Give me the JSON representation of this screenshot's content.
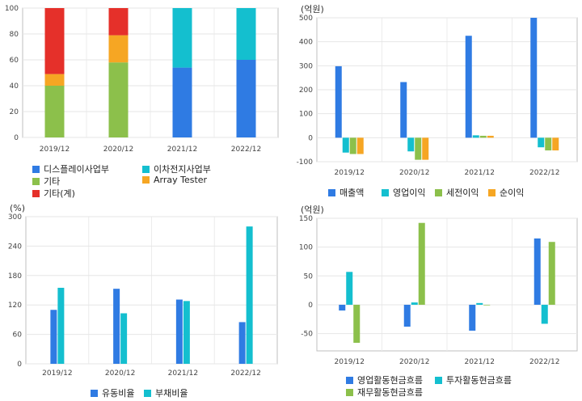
{
  "chart_data": [
    {
      "type": "bar",
      "stacked": true,
      "unit": "",
      "categories": [
        "2019/12",
        "2020/12",
        "2021/12",
        "2022/12"
      ],
      "ylim": [
        0,
        100
      ],
      "yticks": [
        0,
        20,
        40,
        60,
        80,
        100
      ],
      "grid": true,
      "legend_position": "bottom",
      "series": [
        {
          "name": "디스플레이사업부",
          "color": "#2f7be3",
          "values": [
            0,
            0,
            54,
            60
          ]
        },
        {
          "name": "이차전지사업부",
          "color": "#14bfcf",
          "values": [
            0,
            0,
            46,
            40
          ]
        },
        {
          "name": "기타",
          "color": "#8cc04b",
          "values": [
            40,
            58,
            0,
            0
          ]
        },
        {
          "name": "Array Tester",
          "color": "#f6a623",
          "values": [
            9,
            21,
            0,
            0
          ]
        },
        {
          "name": "기타(계)",
          "color": "#e5302a",
          "values": [
            51,
            21,
            0,
            0
          ]
        }
      ]
    },
    {
      "type": "bar",
      "unit": "(억원)",
      "categories": [
        "2019/12",
        "2020/12",
        "2021/12",
        "2022/12"
      ],
      "ylim": [
        -100,
        500
      ],
      "yticks": [
        -100,
        0,
        100,
        200,
        300,
        400,
        500
      ],
      "grid": true,
      "legend_position": "bottom",
      "series": [
        {
          "name": "매출액",
          "color": "#2f7be3",
          "values": [
            298,
            232,
            425,
            500
          ]
        },
        {
          "name": "영업이익",
          "color": "#14bfcf",
          "values": [
            -62,
            -57,
            10,
            -40
          ]
        },
        {
          "name": "세전이익",
          "color": "#8cc04b",
          "values": [
            -68,
            -92,
            8,
            -53
          ]
        },
        {
          "name": "순이익",
          "color": "#f6a623",
          "values": [
            -68,
            -92,
            8,
            -53
          ]
        }
      ]
    },
    {
      "type": "bar",
      "unit": "(%)",
      "categories": [
        "2019/12",
        "2020/12",
        "2021/12",
        "2022/12"
      ],
      "ylim": [
        0,
        300
      ],
      "yticks": [
        0,
        60,
        120,
        180,
        240,
        300
      ],
      "grid": true,
      "legend_position": "bottom",
      "series": [
        {
          "name": "유동비율",
          "color": "#2f7be3",
          "values": [
            110,
            153,
            131,
            85
          ]
        },
        {
          "name": "부채비율",
          "color": "#14bfcf",
          "values": [
            155,
            103,
            128,
            280
          ]
        }
      ]
    },
    {
      "type": "bar",
      "unit": "(억원)",
      "categories": [
        "2019/12",
        "2020/12",
        "2021/12",
        "2022/12"
      ],
      "ylim": [
        -80,
        150
      ],
      "yticks": [
        -50,
        0,
        50,
        100,
        150
      ],
      "grid": true,
      "legend_position": "bottom",
      "series": [
        {
          "name": "영업활동현금흐름",
          "color": "#2f7be3",
          "values": [
            -10,
            -38,
            -45,
            115
          ]
        },
        {
          "name": "투자활동현금흐름",
          "color": "#14bfcf",
          "values": [
            57,
            4,
            3,
            -33
          ]
        },
        {
          "name": "재무활동현금흐름",
          "color": "#8cc04b",
          "values": [
            -66,
            142,
            -1,
            109
          ]
        }
      ]
    }
  ]
}
